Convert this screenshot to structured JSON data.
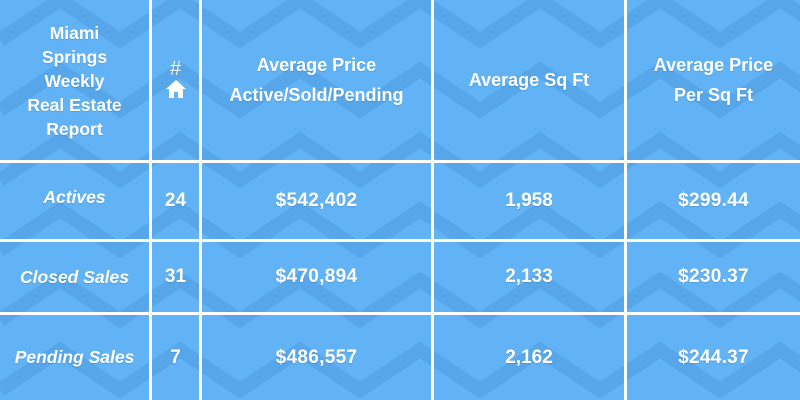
{
  "report": {
    "title": "Miami\nSprings\nWeekly\nReal Estate\nReport",
    "headers": {
      "count_symbol": "#",
      "count_icon": "home-icon",
      "avg_price": "Average Price\nActive/Sold/Pending",
      "avg_sqft": "Average Sq Ft",
      "avg_price_sqft": "Average Price\nPer Sq Ft"
    },
    "rows": [
      {
        "label": "Actives",
        "count": "24",
        "price": "$542,402",
        "sqft": "1,958",
        "price_sqft": "$299.44"
      },
      {
        "label": "Closed Sales",
        "count": "31",
        "price": "$470,894",
        "sqft": "2,133",
        "price_sqft": "$230.37"
      },
      {
        "label": "Pending Sales",
        "count": "7",
        "price": "$486,557",
        "sqft": "2,162",
        "price_sqft": "$244.37"
      }
    ]
  },
  "colors": {
    "background": "#62b3f5",
    "pattern": "#4f9de0",
    "gridlines": "#ffffff",
    "text": "#ffffff"
  }
}
